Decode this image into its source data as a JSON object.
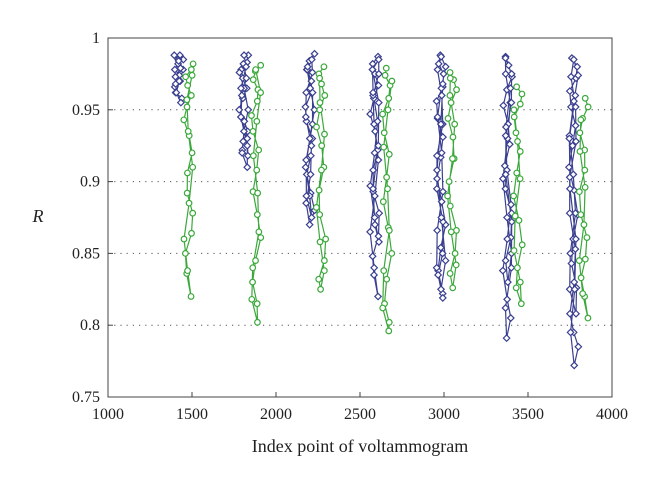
{
  "chart_data": {
    "type": "line",
    "title": "",
    "xlabel": "Index point of voltammogram",
    "ylabel": "R",
    "xlim": [
      1000,
      4000
    ],
    "ylim": [
      0.75,
      1.0
    ],
    "x_ticks": [
      "1000",
      "1500",
      "2000",
      "2500",
      "3000",
      "3500",
      "4000"
    ],
    "y_ticks": [
      "0.75",
      "0.8",
      "0.85",
      "0.9",
      "0.95",
      "1"
    ],
    "grid": "horizontal dotted",
    "legend": "none",
    "colors": {
      "series_a": "#3a3f8f",
      "series_b": "#3aa83a"
    },
    "series": [
      {
        "marker": "diamond",
        "segments": [
          {
            "x": 1420,
            "y": [
              0.988,
              0.985,
              0.982,
              0.978,
              0.974,
              0.97,
              0.966,
              0.962,
              0.958,
              0.955,
              0.962,
              0.97,
              0.978,
              0.985,
              0.988,
              0.984,
              0.979,
              0.973,
              0.968
            ]
          },
          {
            "x": 1810,
            "y": [
              0.988,
              0.983,
              0.978,
              0.972,
              0.965,
              0.958,
              0.95,
              0.942,
              0.935,
              0.928,
              0.922,
              0.918,
              0.93,
              0.945,
              0.96,
              0.972,
              0.982,
              0.976,
              0.965,
              0.95,
              0.935,
              0.92,
              0.91,
              0.925,
              0.945,
              0.965,
              0.98,
              0.988
            ]
          },
          {
            "x": 2200,
            "y": [
              0.989,
              0.984,
              0.978,
              0.97,
              0.962,
              0.952,
              0.942,
              0.93,
              0.918,
              0.905,
              0.892,
              0.88,
              0.87,
              0.885,
              0.905,
              0.925,
              0.945,
              0.962,
              0.976,
              0.985,
              0.978,
              0.965,
              0.95,
              0.93,
              0.91,
              0.89,
              0.875,
              0.89,
              0.915,
              0.94,
              0.962,
              0.98
            ]
          },
          {
            "x": 2590,
            "y": [
              0.987,
              0.982,
              0.975,
              0.967,
              0.958,
              0.947,
              0.935,
              0.922,
              0.908,
              0.893,
              0.878,
              0.862,
              0.848,
              0.835,
              0.82,
              0.84,
              0.865,
              0.89,
              0.915,
              0.94,
              0.96,
              0.975,
              0.985,
              0.978,
              0.962,
              0.942,
              0.92,
              0.897,
              0.875,
              0.858,
              0.87,
              0.895,
              0.925,
              0.955,
              0.978
            ]
          },
          {
            "x": 2980,
            "y": [
              0.988,
              0.982,
              0.975,
              0.966,
              0.956,
              0.944,
              0.931,
              0.917,
              0.902,
              0.886,
              0.87,
              0.854,
              0.838,
              0.822,
              0.819,
              0.84,
              0.866,
              0.893,
              0.92,
              0.945,
              0.965,
              0.98,
              0.987,
              0.978,
              0.96,
              0.94,
              0.918,
              0.895,
              0.872,
              0.85,
              0.835,
              0.825,
              0.845,
              0.875,
              0.908,
              0.94,
              0.968
            ]
          },
          {
            "x": 3380,
            "y": [
              0.987,
              0.981,
              0.973,
              0.964,
              0.953,
              0.94,
              0.926,
              0.911,
              0.895,
              0.878,
              0.861,
              0.845,
              0.83,
              0.85,
              0.875,
              0.902,
              0.93,
              0.955,
              0.975,
              0.986,
              0.975,
              0.955,
              0.932,
              0.908,
              0.884,
              0.86,
              0.838,
              0.818,
              0.805,
              0.791,
              0.812,
              0.84,
              0.872,
              0.905,
              0.938,
              0.965
            ]
          },
          {
            "x": 3770,
            "y": [
              0.986,
              0.98,
              0.972,
              0.963,
              0.952,
              0.939,
              0.925,
              0.91,
              0.894,
              0.877,
              0.86,
              0.843,
              0.826,
              0.808,
              0.825,
              0.85,
              0.878,
              0.905,
              0.932,
              0.956,
              0.974,
              0.985,
              0.973,
              0.952,
              0.928,
              0.903,
              0.878,
              0.853,
              0.83,
              0.808,
              0.795,
              0.785,
              0.772,
              0.795,
              0.825,
              0.86,
              0.895,
              0.93,
              0.96
            ]
          }
        ]
      },
      {
        "marker": "circle",
        "segments": [
          {
            "x": 1480,
            "y": [
              0.982,
              0.978,
              0.973,
              0.967,
              0.96,
              0.952,
              0.943,
              0.932,
              0.92,
              0.906,
              0.892,
              0.878,
              0.864,
              0.85,
              0.836,
              0.82,
              0.838,
              0.86,
              0.885,
              0.91,
              0.935,
              0.957,
              0.974
            ]
          },
          {
            "x": 1880,
            "y": [
              0.981,
              0.977,
              0.971,
              0.964,
              0.956,
              0.946,
              0.935,
              0.922,
              0.908,
              0.893,
              0.877,
              0.861,
              0.845,
              0.83,
              0.815,
              0.802,
              0.818,
              0.84,
              0.865,
              0.892,
              0.918,
              0.942,
              0.962,
              0.978
            ]
          },
          {
            "x": 2270,
            "y": [
              0.98,
              0.975,
              0.968,
              0.96,
              0.95,
              0.938,
              0.925,
              0.91,
              0.894,
              0.877,
              0.86,
              0.845,
              0.832,
              0.825,
              0.838,
              0.858,
              0.882,
              0.908,
              0.933,
              0.955,
              0.972
            ]
          },
          {
            "x": 2660,
            "y": [
              0.979,
              0.974,
              0.967,
              0.958,
              0.947,
              0.934,
              0.919,
              0.903,
              0.886,
              0.868,
              0.85,
              0.832,
              0.815,
              0.802,
              0.796,
              0.812,
              0.838,
              0.866,
              0.895,
              0.924,
              0.95,
              0.97
            ]
          },
          {
            "x": 3050,
            "y": [
              0.976,
              0.971,
              0.964,
              0.955,
              0.944,
              0.931,
              0.916,
              0.9,
              0.883,
              0.866,
              0.85,
              0.836,
              0.826,
              0.842,
              0.865,
              0.89,
              0.916,
              0.94,
              0.96,
              0.972
            ]
          },
          {
            "x": 3440,
            "y": [
              0.966,
              0.961,
              0.954,
              0.945,
              0.934,
              0.921,
              0.906,
              0.89,
              0.873,
              0.856,
              0.84,
              0.826,
              0.815,
              0.83,
              0.852,
              0.876,
              0.902,
              0.928,
              0.95
            ]
          },
          {
            "x": 3830,
            "y": [
              0.958,
              0.952,
              0.944,
              0.934,
              0.922,
              0.908,
              0.893,
              0.877,
              0.861,
              0.846,
              0.833,
              0.82,
              0.805,
              0.822,
              0.845,
              0.87,
              0.896,
              0.921,
              0.943
            ]
          }
        ]
      }
    ]
  }
}
